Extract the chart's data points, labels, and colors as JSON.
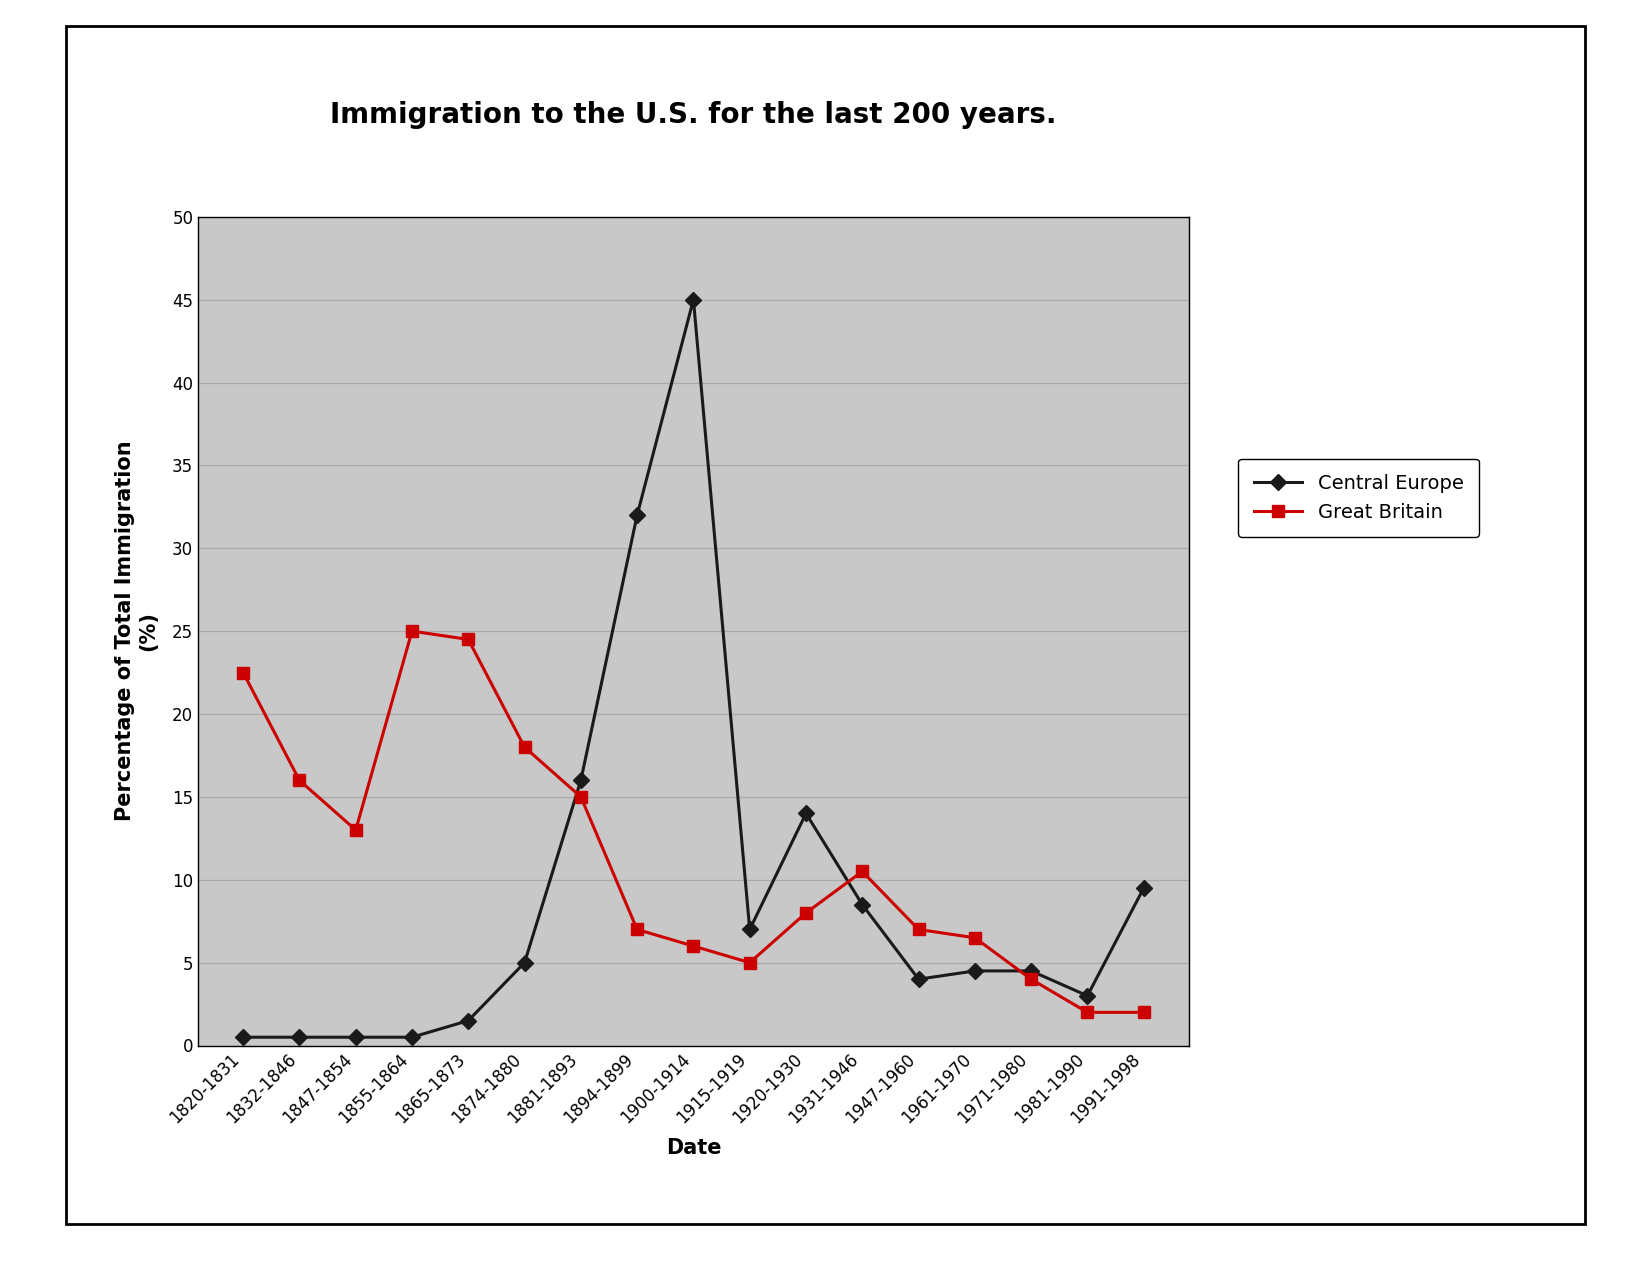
{
  "title": "Immigration to the U.S. for the last 200 years.",
  "xlabel": "Date",
  "ylabel": "Percentage of Total Immigration\n(%)",
  "categories": [
    "1820-1831",
    "1832-1846",
    "1847-1854",
    "1855-1864",
    "1865-1873",
    "1874-1880",
    "1881-1893",
    "1894-1899",
    "1900-1914",
    "1915-1919",
    "1920-1930",
    "1931-1946",
    "1947-1960",
    "1961-1970",
    "1971-1980",
    "1981-1990",
    "1991-1998"
  ],
  "central_europe": [
    0.5,
    0.5,
    0.5,
    0.5,
    1.5,
    5,
    16,
    32,
    45,
    7,
    14,
    8.5,
    4,
    4.5,
    4.5,
    3,
    9.5
  ],
  "great_britain": [
    22.5,
    16,
    13,
    25,
    24.5,
    18,
    15,
    7,
    6,
    5,
    8,
    10.5,
    7,
    6.5,
    4,
    2,
    2
  ],
  "central_europe_color": "#1a1a1a",
  "great_britain_color": "#cc0000",
  "plot_bg_color": "#c8c8c8",
  "fig_bg_color": "#ffffff",
  "grid_color": "#aaaaaa",
  "ylim": [
    0,
    50
  ],
  "yticks": [
    0,
    5,
    10,
    15,
    20,
    25,
    30,
    35,
    40,
    45,
    50
  ],
  "title_fontsize": 20,
  "axis_label_fontsize": 15,
  "tick_fontsize": 12,
  "legend_fontsize": 14,
  "line_width": 2.2,
  "marker_size": 8
}
